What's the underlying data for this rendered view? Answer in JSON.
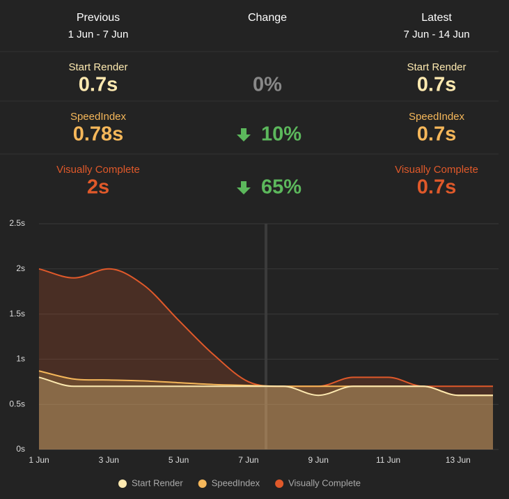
{
  "summary": {
    "previous": {
      "title": "Previous",
      "range": "1 Jun - 7 Jun"
    },
    "change": {
      "title": "Change"
    },
    "latest": {
      "title": "Latest",
      "range": "7 Jun - 14 Jun"
    },
    "metrics": [
      {
        "name": "Start Render",
        "color": "#fde9b0",
        "previous": "0.7s",
        "change": "0%",
        "trend": "none",
        "latest": "0.7s"
      },
      {
        "name": "SpeedIndex",
        "color": "#f5b75a",
        "previous": "0.78s",
        "change": "10%",
        "trend": "down",
        "latest": "0.7s"
      },
      {
        "name": "Visually Complete",
        "color": "#e0592a",
        "previous": "2s",
        "change": "65%",
        "trend": "down",
        "latest": "0.7s"
      }
    ]
  },
  "chart_data": {
    "type": "area",
    "categories": [
      "1 Jun",
      null,
      "3 Jun",
      null,
      "5 Jun",
      null,
      "7 Jun",
      null,
      "9 Jun",
      null,
      "11 Jun",
      null,
      "13 Jun",
      null
    ],
    "series": [
      {
        "name": "Start Render",
        "color": "#fde9b0",
        "values": [
          0.8,
          0.7,
          0.7,
          0.7,
          0.7,
          0.7,
          0.7,
          0.7,
          0.6,
          0.7,
          0.7,
          0.7,
          0.6,
          0.6
        ]
      },
      {
        "name": "SpeedIndex",
        "color": "#f5b75a",
        "values": [
          0.87,
          0.78,
          0.77,
          0.76,
          0.74,
          0.72,
          0.71,
          0.7,
          0.7,
          0.7,
          0.7,
          0.7,
          0.6,
          0.6
        ]
      },
      {
        "name": "Visually Complete",
        "color": "#e0592a",
        "values": [
          2.0,
          1.9,
          2.0,
          1.82,
          1.43,
          1.05,
          0.75,
          0.7,
          0.7,
          0.8,
          0.8,
          0.7,
          0.7,
          0.7
        ]
      }
    ],
    "ylim": [
      0,
      2.5
    ],
    "yticks": [
      {
        "value": 0,
        "label": "0s"
      },
      {
        "value": 0.5,
        "label": "0.5s"
      },
      {
        "value": 1,
        "label": "1s"
      },
      {
        "value": 1.5,
        "label": "1.5s"
      },
      {
        "value": 2,
        "label": "2s"
      },
      {
        "value": 2.5,
        "label": "2.5s"
      }
    ],
    "grid": true
  }
}
